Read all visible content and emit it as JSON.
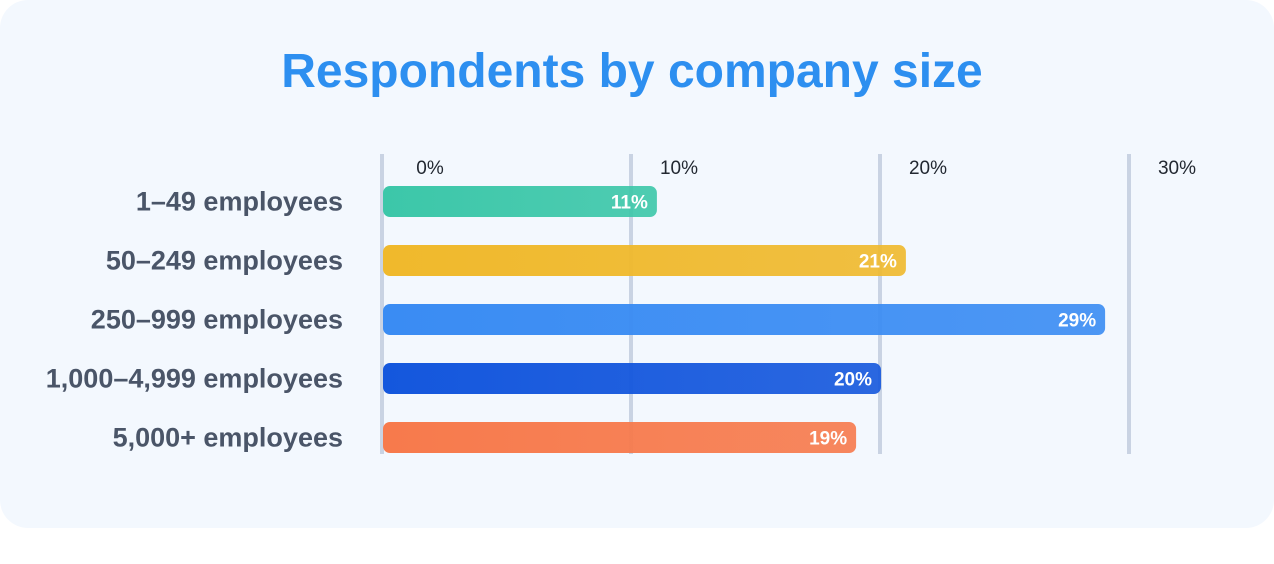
{
  "chart_data": {
    "type": "bar",
    "orientation": "horizontal",
    "title": "Respondents by company size",
    "categories": [
      "1–49 employees",
      "50–249 employees",
      "250–999 employees",
      "1,000–4,999 employees",
      "5,000+ employees"
    ],
    "values": [
      11,
      21,
      29,
      20,
      19
    ],
    "data_labels": [
      "11%",
      "21%",
      "29%",
      "20%",
      "19%"
    ],
    "colors": [
      "#3cc7a9",
      "#f0b92c",
      "#3a8cf3",
      "#1457dd",
      "#f77a4c"
    ],
    "xticks": [
      0,
      10,
      20,
      30
    ],
    "xtick_labels": [
      "0%",
      "10%",
      "20%",
      "30%"
    ],
    "xlim": [
      0,
      30
    ],
    "grid": true,
    "xlabel": "",
    "ylabel": ""
  },
  "colors": {
    "title": "#2d8ff0",
    "background": "#f3f8fe",
    "gridline": "#c9d3e3",
    "category_text": "#4a5568"
  }
}
